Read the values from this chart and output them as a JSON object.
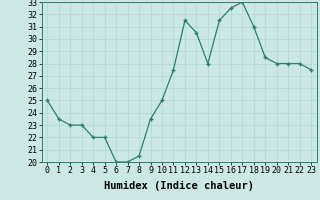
{
  "x": [
    0,
    1,
    2,
    3,
    4,
    5,
    6,
    7,
    8,
    9,
    10,
    11,
    12,
    13,
    14,
    15,
    16,
    17,
    18,
    19,
    20,
    21,
    22,
    23
  ],
  "y": [
    25,
    23.5,
    23,
    23,
    22,
    22,
    20,
    20,
    20.5,
    23.5,
    25,
    27.5,
    31.5,
    30.5,
    28,
    31.5,
    32.5,
    33,
    31,
    28.5,
    28,
    28,
    28,
    27.5
  ],
  "line_color": "#2e7d6e",
  "marker_color": "#2e7d6e",
  "bg_color": "#cce8e4",
  "grid_color": "#b0d8d2",
  "xlabel": "Humidex (Indice chaleur)",
  "xlim": [
    -0.5,
    23.5
  ],
  "ylim": [
    20,
    33
  ],
  "xticks": [
    0,
    1,
    2,
    3,
    4,
    5,
    6,
    7,
    8,
    9,
    10,
    11,
    12,
    13,
    14,
    15,
    16,
    17,
    18,
    19,
    20,
    21,
    22,
    23
  ],
  "yticks": [
    20,
    21,
    22,
    23,
    24,
    25,
    26,
    27,
    28,
    29,
    30,
    31,
    32,
    33
  ],
  "xlabel_fontsize": 7.5,
  "tick_fontsize": 6.0
}
